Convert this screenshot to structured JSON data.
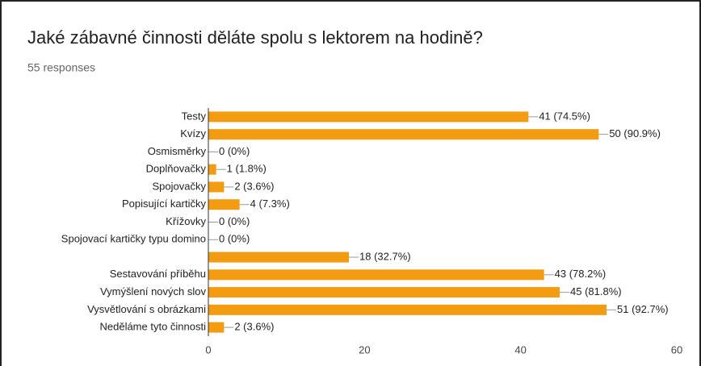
{
  "chart_data": {
    "type": "hbar",
    "title": "Jaké zábavné činnosti děláte spolu s lektorem na hodině?",
    "subtitle": "55 responses",
    "categories": [
      "Testy",
      "Kvízy",
      "Osmisměrky",
      "Doplňovačky",
      "Spojovačky",
      "Popisující kartičky",
      "Křížovky",
      "Spojovací kartičky typu domino",
      null,
      "Sestavování příběhu",
      "Vymýšlení nových slov",
      "Vysvětlování s obrázkami",
      "Neděláme tyto činnosti"
    ],
    "values": [
      41,
      50,
      0,
      1,
      2,
      4,
      0,
      0,
      18,
      43,
      45,
      51,
      2
    ],
    "value_labels": [
      "41 (74.5%)",
      "50 (90.9%)",
      "0 (0%)",
      "1 (1.8%)",
      "2 (3.6%)",
      "4 (7.3%)",
      "0 (0%)",
      "0 (0%)",
      "18 (32.7%)",
      "43 (78.2%)",
      "45 (81.8%)",
      "51 (92.7%)",
      "2 (3.6%)"
    ],
    "color": "#f39c12",
    "xlim": [
      0,
      60
    ],
    "xticks": [
      0,
      20,
      40,
      60
    ]
  }
}
